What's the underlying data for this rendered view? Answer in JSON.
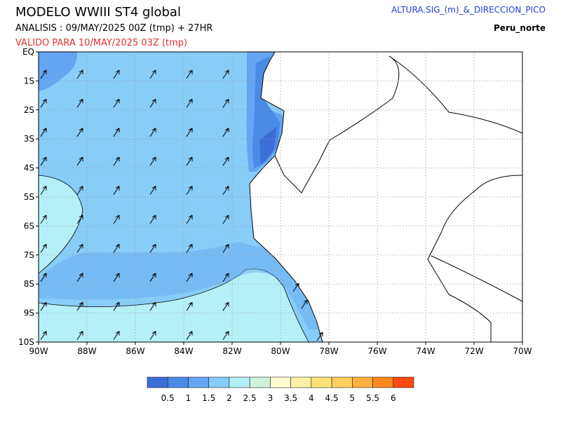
{
  "header": {
    "title": "MODELO WWIII ST4 global",
    "analysis": "ANALISIS : 09/MAY/2025 00Z  (tmp) + 27HR",
    "valid": "VALIDO PARA  10/MAY/2025 03Z  (tmp)",
    "variable": "ALTURA.SIG_(m)_&_DIRECCION_PICO",
    "region": "Peru_norte"
  },
  "map": {
    "lat_labels": [
      "EQ",
      "1S",
      "2S",
      "3S",
      "4S",
      "5S",
      "6S",
      "7S",
      "8S",
      "9S",
      "10S"
    ],
    "lon_labels": [
      "90W",
      "88W",
      "86W",
      "84W",
      "82W",
      "80W",
      "78W",
      "76W",
      "74W",
      "72W",
      "70W"
    ]
  },
  "legend": {
    "levels": [
      0.5,
      1,
      1.5,
      2,
      2.5,
      3,
      3.5,
      4,
      4.5,
      5,
      5.5,
      6
    ],
    "colors": [
      "#3c6fd6",
      "#4a8be6",
      "#64a6f2",
      "#88ccf8",
      "#b4f0f8",
      "#ccf2dc",
      "#fefcd2",
      "#fef0a4",
      "#fee478",
      "#fdcf5e",
      "#fdb040",
      "#fd8a20",
      "#fb4a12"
    ]
  }
}
